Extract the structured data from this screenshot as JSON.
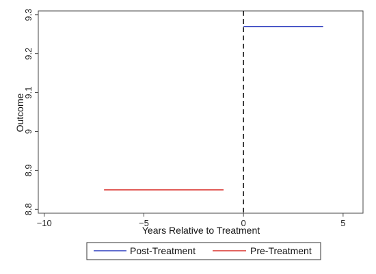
{
  "chart_data": {
    "type": "line",
    "xlabel": "Years Relative to Treatment",
    "ylabel": "Outcome",
    "xlim": [
      -10.3,
      6.0
    ],
    "ylim": [
      8.79,
      9.31
    ],
    "xticks": [
      -10,
      -5,
      0,
      5
    ],
    "xtick_labels": [
      "−10",
      "−5",
      "0",
      "5"
    ],
    "yticks": [
      8.8,
      8.9,
      9.0,
      9.1,
      9.2,
      9.3
    ],
    "ytick_labels": [
      "8.8",
      "8.9",
      "9",
      "9.1",
      "9.2",
      "9.3"
    ],
    "series": [
      {
        "name": "Post-Treatment",
        "color": "#2f3fbf",
        "x": [
          0,
          4
        ],
        "y": [
          9.27,
          9.27
        ]
      },
      {
        "name": "Pre-Treatment",
        "color": "#d9302c",
        "x": [
          -7,
          -1
        ],
        "y": [
          8.85,
          8.85
        ]
      }
    ],
    "reference_line": {
      "x": 0,
      "style": "dashed",
      "color": "#111111"
    },
    "grid": false,
    "legend_position": "bottom"
  }
}
